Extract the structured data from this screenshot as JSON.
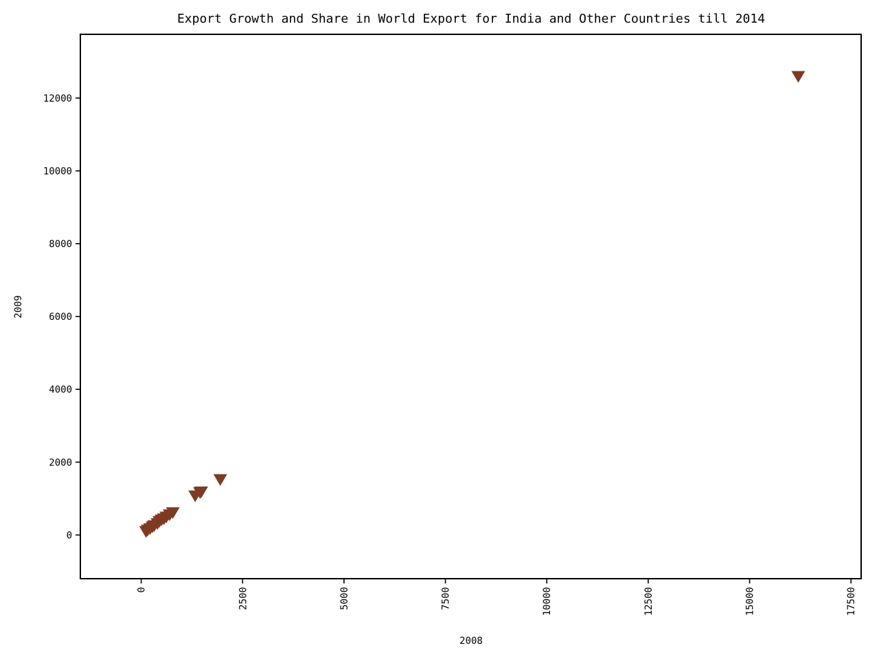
{
  "chart_data": {
    "type": "scatter",
    "title": "Export Growth and Share in World Export for India and Other Countries till 2014",
    "xlabel": "2008",
    "ylabel": "2009",
    "xlim": [
      -1500,
      17750
    ],
    "ylim": [
      -1200,
      13750
    ],
    "xticks": [
      0,
      2500,
      5000,
      7500,
      10000,
      12500,
      15000,
      17500
    ],
    "yticks": [
      0,
      2000,
      4000,
      6000,
      8000,
      10000,
      12000
    ],
    "grid": false,
    "legend": "none",
    "marker": "triangle-down",
    "marker_color": "#7f3b22",
    "series": [
      {
        "x": [
          120,
          160,
          220,
          280,
          320,
          400,
          450,
          500,
          560,
          620,
          700,
          780,
          1330,
          1450,
          1480,
          1950,
          16200
        ],
        "y": [
          100,
          140,
          180,
          230,
          260,
          320,
          380,
          420,
          450,
          500,
          560,
          620,
          1080,
          1170,
          1190,
          1530,
          12600
        ]
      }
    ]
  }
}
